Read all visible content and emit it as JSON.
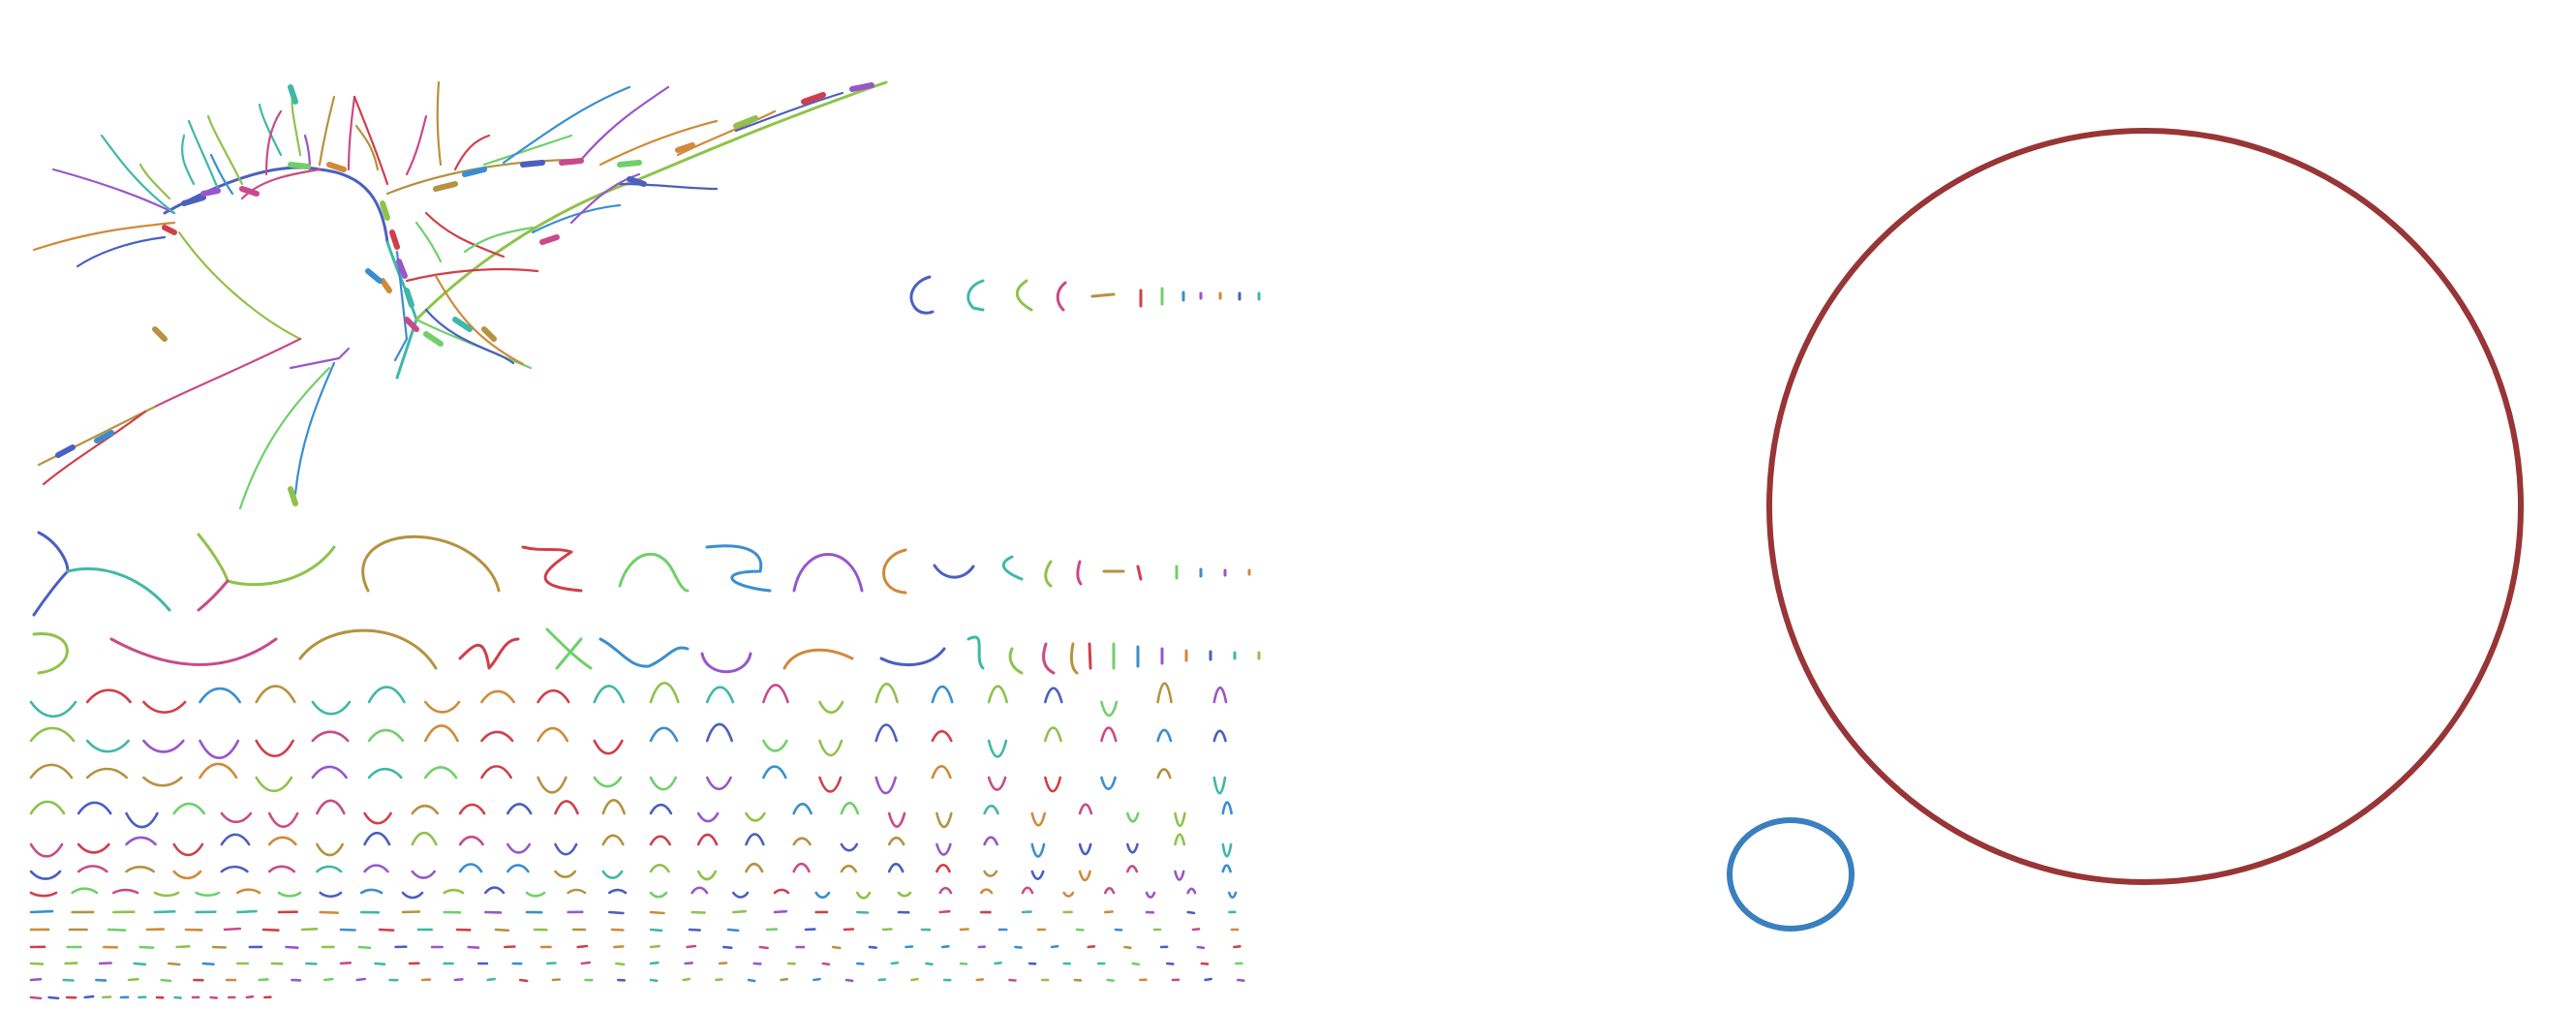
{
  "palette": [
    "#4a5fc1",
    "#3fb8a8",
    "#8fc24a",
    "#c94a8a",
    "#b5923f",
    "#cf3f4a",
    "#6fd06a",
    "#3a8ed0",
    "#9a55c9",
    "#d08a3a"
  ],
  "colors": {
    "background": "#ffffff",
    "large_circle": "#983536",
    "small_circle": "#3a7fbf"
  },
  "sections": {
    "neuron_tree": {
      "description_key": "branched-skeleton"
    },
    "decomposition_row": {
      "label": ""
    },
    "fragment_grid": {
      "rows": 14
    },
    "circles": {
      "count": 2
    }
  }
}
